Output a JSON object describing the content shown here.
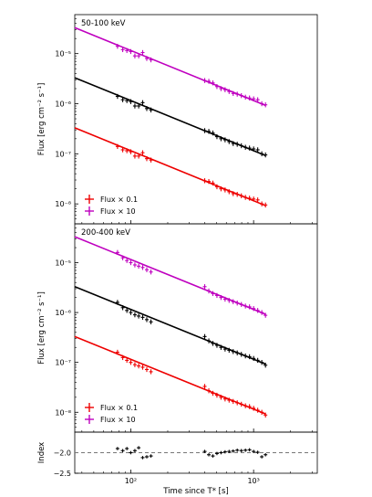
{
  "chart_data": {
    "type": "scatter",
    "xscale": "log",
    "xlim": [
      35,
      3300
    ],
    "xlabel": "Time since T* [s]",
    "xticks": [
      {
        "value": 100,
        "label": "10²"
      },
      {
        "value": 1000,
        "label": "10³"
      }
    ],
    "shared_x": true,
    "panels": [
      {
        "label": "50-100 keV",
        "ylabel": "Flux [erg cm⁻² s⁻¹]",
        "yscale": "log",
        "ylim": [
          4e-09,
          6e-05
        ],
        "yticks": [
          {
            "value": 1e-08,
            "label": "10⁻⁸"
          },
          {
            "value": 1e-07,
            "label": "10⁻⁷"
          },
          {
            "value": 1e-06,
            "label": "10⁻⁶"
          },
          {
            "value": 1e-05,
            "label": "10⁻⁵"
          }
        ],
        "legend": {
          "placement": "lower-left",
          "entries": [
            "Flux × 0.1",
            "Flux × 10"
          ]
        },
        "series": [
          {
            "legend": "Flux × 10",
            "color": "#bf00bf",
            "model_amp": 3.3e-05,
            "index": -1.0,
            "x": [
              78,
              86,
              93,
              100,
              108,
              116,
              125,
              135,
              146,
              400,
              432,
              466,
              503,
              543,
              586,
              632,
              682,
              736,
              795,
              858,
              926,
              1000,
              1080,
              1166,
              1250
            ],
            "y": [
              1.4e-05,
              1.2e-05,
              1.15e-05,
              1.1e-05,
              9e-06,
              9e-06,
              1.05e-05,
              8e-06,
              7.5e-06,
              2.9e-06,
              2.8e-06,
              2.6e-06,
              2.2e-06,
              2e-06,
              1.9e-06,
              1.75e-06,
              1.6e-06,
              1.55e-06,
              1.45e-06,
              1.35e-06,
              1.3e-06,
              1.25e-06,
              1.2e-06,
              1e-06,
              9.5e-07
            ]
          },
          {
            "legend": "",
            "color": "#000000",
            "model_amp": 3.3e-06,
            "index": -1.0,
            "x": [
              78,
              86,
              93,
              100,
              108,
              116,
              125,
              135,
              146,
              400,
              432,
              466,
              503,
              543,
              586,
              632,
              682,
              736,
              795,
              858,
              926,
              1000,
              1080,
              1166,
              1250
            ],
            "y": [
              1.4e-06,
              1.2e-06,
              1.15e-06,
              1.1e-06,
              9e-07,
              9e-07,
              1.05e-06,
              8e-07,
              7.5e-07,
              2.9e-07,
              2.8e-07,
              2.6e-07,
              2.2e-07,
              2e-07,
              1.9e-07,
              1.75e-07,
              1.6e-07,
              1.55e-07,
              1.45e-07,
              1.35e-07,
              1.3e-07,
              1.25e-07,
              1.2e-07,
              1e-07,
              9.5e-08
            ]
          },
          {
            "legend": "Flux × 0.1",
            "color": "#ee0000",
            "model_amp": 3.3e-07,
            "index": -1.0,
            "x": [
              78,
              86,
              93,
              100,
              108,
              116,
              125,
              135,
              146,
              400,
              432,
              466,
              503,
              543,
              586,
              632,
              682,
              736,
              795,
              858,
              926,
              1000,
              1080,
              1166,
              1250
            ],
            "y": [
              1.4e-07,
              1.2e-07,
              1.15e-07,
              1.1e-07,
              9e-08,
              9e-08,
              1.05e-07,
              8e-08,
              7.5e-08,
              2.9e-08,
              2.8e-08,
              2.6e-08,
              2.2e-08,
              2e-08,
              1.9e-08,
              1.75e-08,
              1.6e-08,
              1.55e-08,
              1.45e-08,
              1.35e-08,
              1.3e-08,
              1.25e-08,
              1.2e-08,
              1e-08,
              9.5e-09
            ]
          }
        ]
      },
      {
        "label": "200-400 keV",
        "ylabel": "Flux [erg cm⁻² s⁻¹]",
        "yscale": "log",
        "ylim": [
          4e-09,
          6e-05
        ],
        "yticks": [
          {
            "value": 1e-08,
            "label": "10⁻⁸"
          },
          {
            "value": 1e-07,
            "label": "10⁻⁷"
          },
          {
            "value": 1e-06,
            "label": "10⁻⁶"
          },
          {
            "value": 1e-05,
            "label": "10⁻⁵"
          }
        ],
        "legend": {
          "placement": "lower-left",
          "entries": [
            "Flux × 0.1",
            "Flux × 10"
          ]
        },
        "series": [
          {
            "legend": "Flux × 10",
            "color": "#bf00bf",
            "model_amp": 3.3e-05,
            "index": -1.0,
            "x": [
              78,
              86,
              93,
              100,
              108,
              116,
              125,
              135,
              146,
              400,
              432,
              466,
              503,
              543,
              586,
              632,
              682,
              736,
              795,
              858,
              926,
              1000,
              1080,
              1166,
              1250
            ],
            "y": [
              1.6e-05,
              1.25e-05,
              1.1e-05,
              1e-05,
              9e-06,
              8.5e-06,
              8e-06,
              7.2e-06,
              6.5e-06,
              3.3e-06,
              2.7e-06,
              2.4e-06,
              2.2e-06,
              2e-06,
              1.85e-06,
              1.75e-06,
              1.65e-06,
              1.55e-06,
              1.45e-06,
              1.35e-06,
              1.3e-06,
              1.2e-06,
              1.1e-06,
              1e-06,
              8.8e-07
            ]
          },
          {
            "legend": "",
            "color": "#000000",
            "model_amp": 3.3e-06,
            "index": -1.0,
            "x": [
              78,
              86,
              93,
              100,
              108,
              116,
              125,
              135,
              146,
              400,
              432,
              466,
              503,
              543,
              586,
              632,
              682,
              736,
              795,
              858,
              926,
              1000,
              1080,
              1166,
              1250
            ],
            "y": [
              1.6e-06,
              1.25e-06,
              1.1e-06,
              1e-06,
              9e-07,
              8.5e-07,
              8e-07,
              7.2e-07,
              6.5e-07,
              3.3e-07,
              2.7e-07,
              2.4e-07,
              2.2e-07,
              2e-07,
              1.85e-07,
              1.75e-07,
              1.65e-07,
              1.55e-07,
              1.45e-07,
              1.35e-07,
              1.3e-07,
              1.2e-07,
              1.1e-07,
              1e-07,
              8.8e-08
            ]
          },
          {
            "legend": "Flux × 0.1",
            "color": "#ee0000",
            "model_amp": 3.3e-07,
            "index": -1.0,
            "x": [
              78,
              86,
              93,
              100,
              108,
              116,
              125,
              135,
              146,
              400,
              432,
              466,
              503,
              543,
              586,
              632,
              682,
              736,
              795,
              858,
              926,
              1000,
              1080,
              1166,
              1250
            ],
            "y": [
              1.6e-07,
              1.25e-07,
              1.1e-07,
              1e-07,
              9e-08,
              8.5e-08,
              8e-08,
              7.2e-08,
              6.5e-08,
              3.3e-08,
              2.7e-08,
              2.4e-08,
              2.2e-08,
              2e-08,
              1.85e-08,
              1.75e-08,
              1.65e-08,
              1.55e-08,
              1.45e-08,
              1.35e-08,
              1.3e-08,
              1.2e-08,
              1.1e-08,
              1e-08,
              8.8e-09
            ]
          }
        ]
      },
      {
        "label": "",
        "ylabel": "Index",
        "yscale": "linear",
        "ylim": [
          -2.5,
          -1.5
        ],
        "yticks": [
          {
            "value": -2.0,
            "label": "−2.0"
          },
          {
            "value": -2.5,
            "label": "−2.5"
          }
        ],
        "reference_line": -2.0,
        "series": [
          {
            "legend": "",
            "color": "#000000",
            "x": [
              78,
              86,
              93,
              100,
              108,
              116,
              125,
              135,
              146,
              400,
              432,
              466,
              503,
              543,
              586,
              632,
              682,
              736,
              795,
              858,
              926,
              1000,
              1080,
              1166,
              1250
            ],
            "y": [
              -1.9,
              -1.95,
              -1.9,
              -2.0,
              -1.95,
              -1.88,
              -2.12,
              -2.1,
              -2.08,
              -1.97,
              -2.05,
              -2.08,
              -2.02,
              -2.0,
              -1.98,
              -1.97,
              -1.96,
              -1.94,
              -1.95,
              -1.94,
              -1.93,
              -1.97,
              -1.99,
              -2.1,
              -2.05
            ],
            "yerr": [
              0.04,
              0.04,
              0.04,
              0.04,
              0.04,
              0.04,
              0.04,
              0.04,
              0.04,
              0.04,
              0.04,
              0.04,
              0.04,
              0.04,
              0.04,
              0.04,
              0.04,
              0.04,
              0.04,
              0.04,
              0.04,
              0.04,
              0.04,
              0.04,
              0.04
            ]
          }
        ]
      }
    ]
  }
}
